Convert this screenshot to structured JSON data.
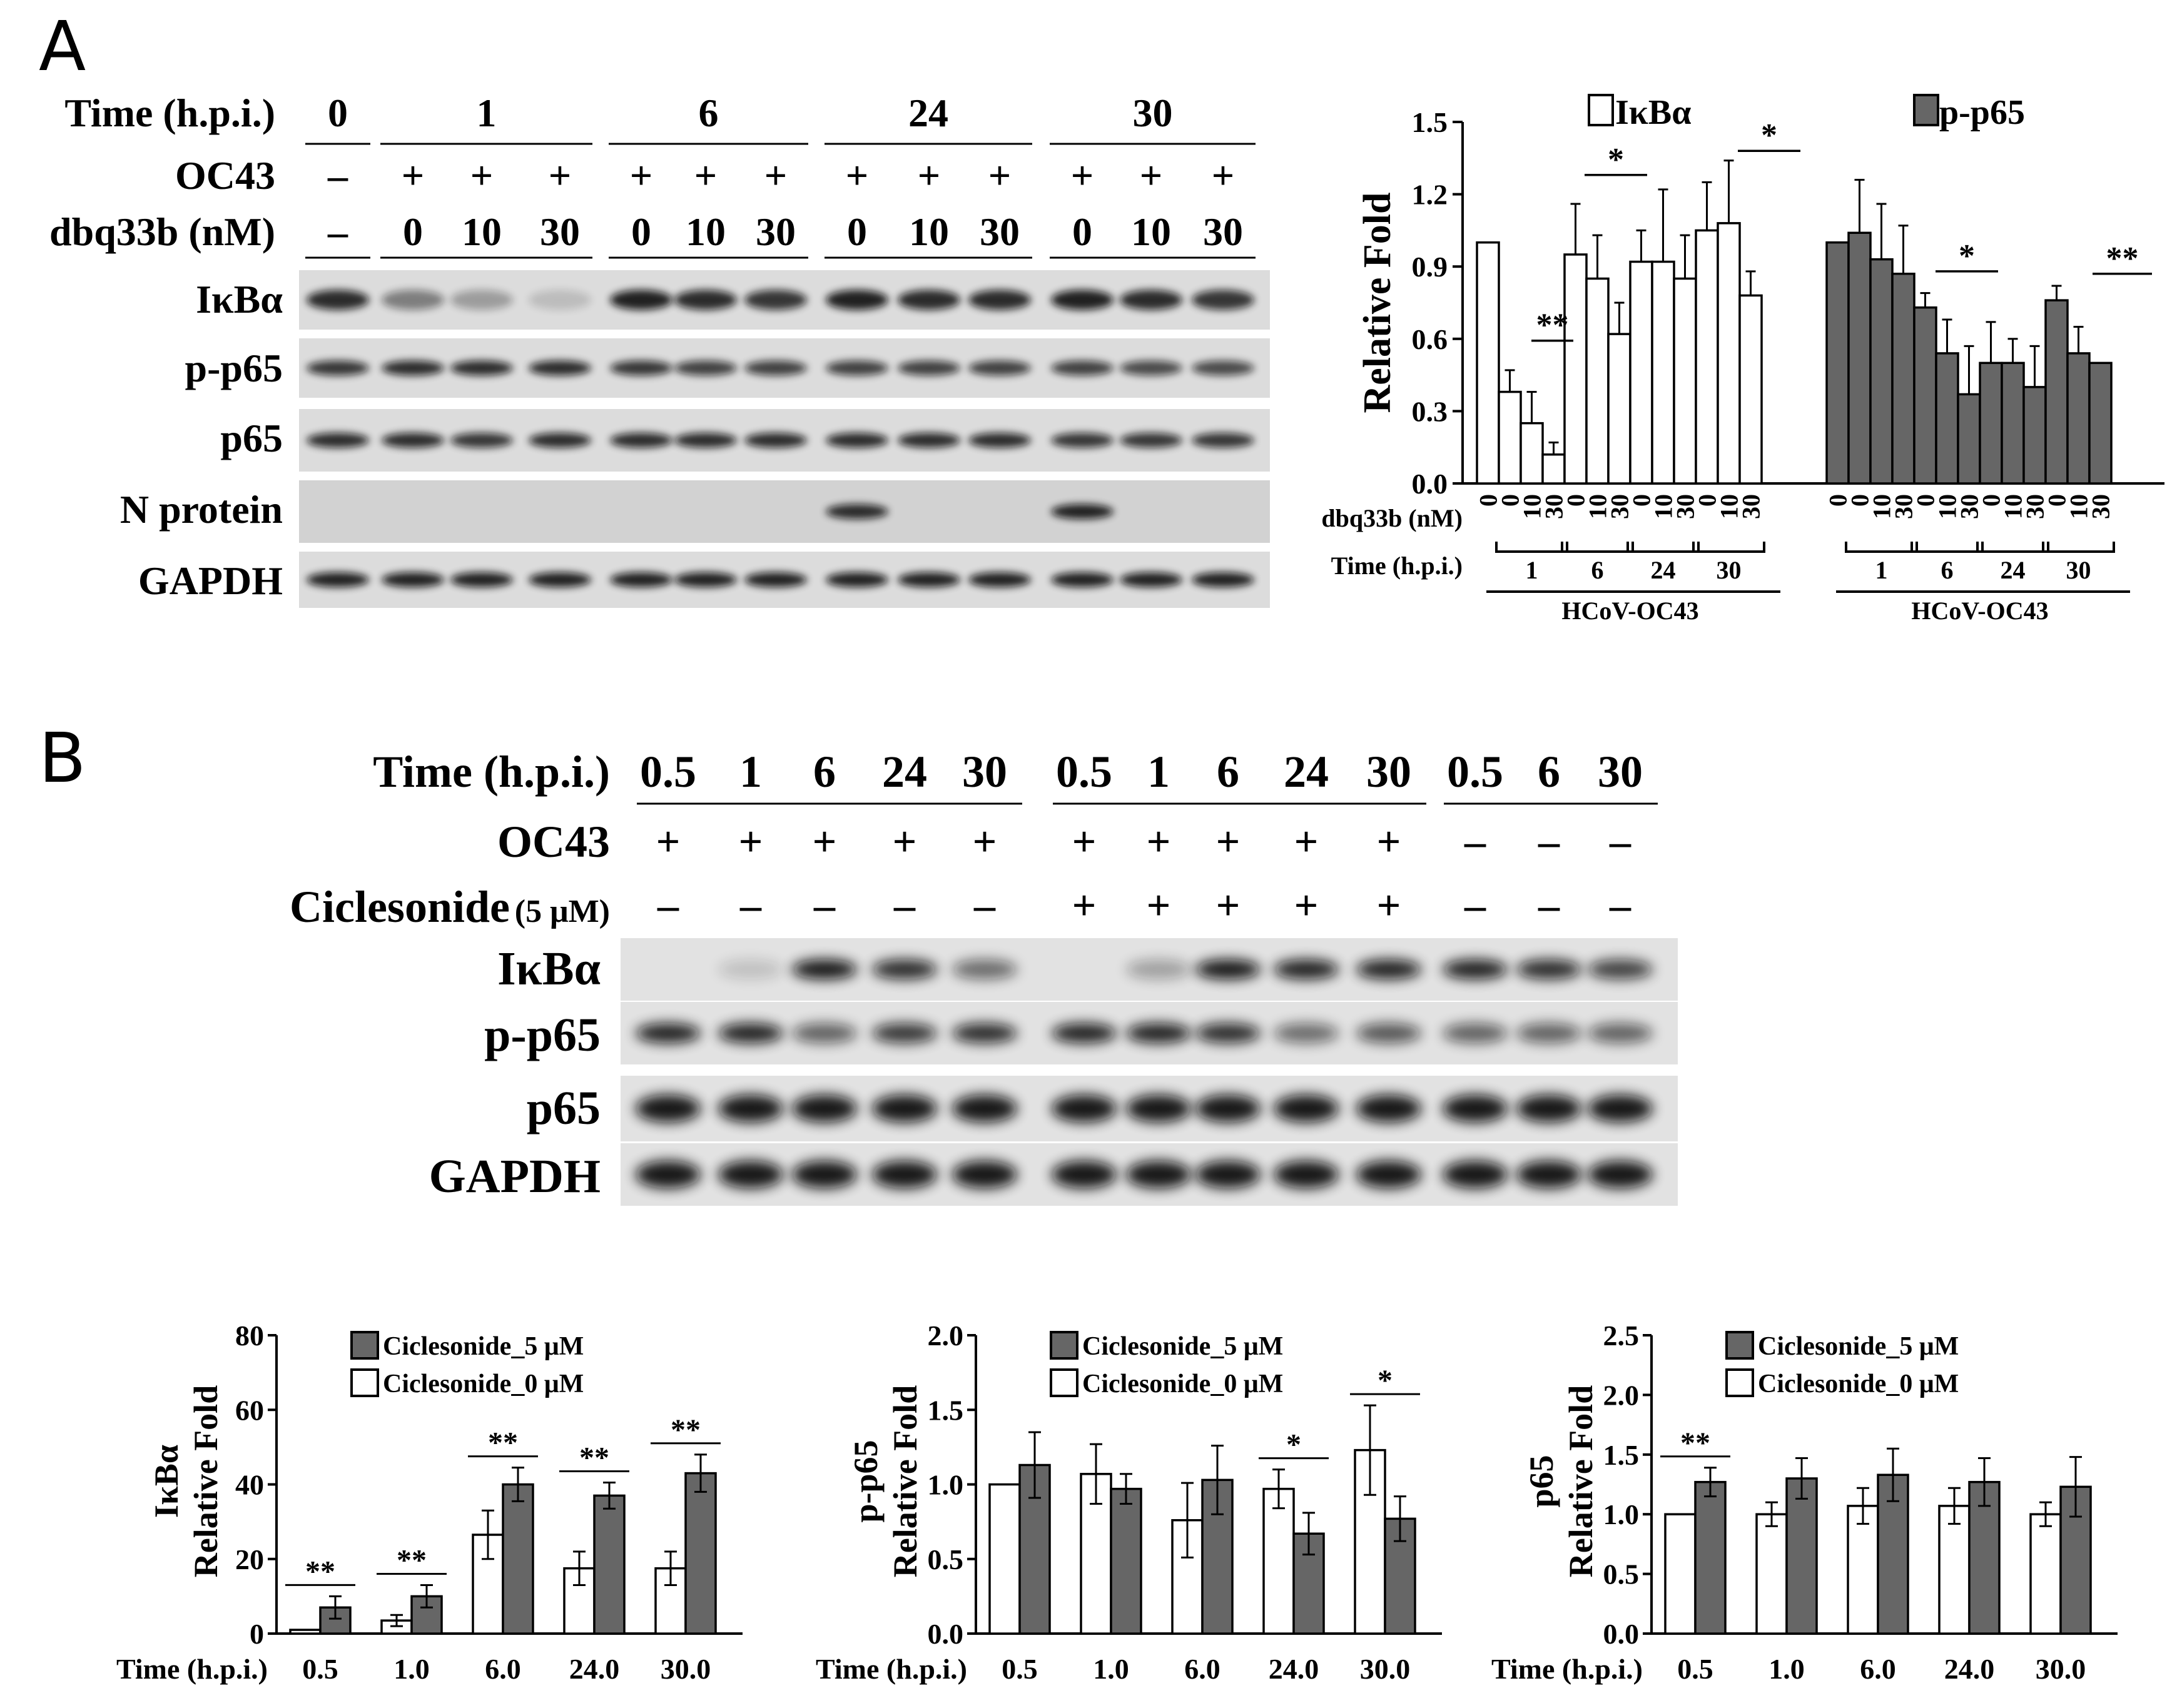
{
  "panel_A": {
    "letter": "A",
    "blot": {
      "rows": [
        {
          "label": "Time (h.p.i.)",
          "values": [
            "0",
            "1",
            "6",
            "24",
            "30"
          ]
        },
        {
          "label": "OC43",
          "values": [
            "–",
            "+",
            "+",
            "+",
            "+",
            "+",
            "+",
            "+",
            "+",
            "+",
            "+",
            "+",
            "+"
          ]
        },
        {
          "label": "dbq33b (nM)",
          "values": [
            "–",
            "0",
            "10",
            "30",
            "0",
            "10",
            "30",
            "0",
            "10",
            "30",
            "0",
            "10",
            "30"
          ]
        }
      ],
      "bands": [
        "IκBα",
        "p-p65",
        "p65",
        "N protein",
        "GAPDH"
      ]
    }
  },
  "panel_B": {
    "letter": "B",
    "blot": {
      "time_label": "Time (h.p.i.)",
      "times": [
        "0.5",
        "1",
        "6",
        "24",
        "30",
        "0.5",
        "1",
        "6",
        "24",
        "30",
        "0.5",
        "6",
        "30"
      ],
      "oc43_label": "OC43",
      "oc43": [
        "+",
        "+",
        "+",
        "+",
        "+",
        "+",
        "+",
        "+",
        "+",
        "+",
        "–",
        "–",
        "–"
      ],
      "cic_label": "Ciclesonide",
      "cic_conc": "(5 μM)",
      "cic": [
        "–",
        "–",
        "–",
        "–",
        "–",
        "+",
        "+",
        "+",
        "+",
        "+",
        "–",
        "–",
        "–"
      ],
      "bands": [
        "IκBα",
        "p-p65",
        "p65",
        "GAPDH"
      ]
    }
  },
  "chart_data": [
    {
      "type": "bar",
      "id": "A-quant",
      "ylabel": "Relative Fold",
      "ylim": [
        0,
        1.5
      ],
      "yticks": [
        "0.0",
        "0.3",
        "0.6",
        "0.9",
        "1.2",
        "1.5"
      ],
      "xlabel_row1": "dbq33b (nM)",
      "xlabel_row2": "Time (h.p.i.)",
      "group_label": "HCoV-OC43",
      "dose_labels": [
        "0",
        "0",
        "10",
        "30",
        "0",
        "10",
        "30",
        "0",
        "10",
        "30",
        "0",
        "10",
        "30"
      ],
      "time_labels": [
        "1",
        "6",
        "24",
        "30"
      ],
      "significance": [
        "**",
        "*",
        "*",
        "*",
        "**"
      ],
      "series": [
        {
          "name": "IκBα",
          "color": "#ffffff",
          "values": [
            1.0,
            0.38,
            0.25,
            0.12,
            0.95,
            0.85,
            0.62,
            0.92,
            0.92,
            0.85,
            1.05,
            1.08,
            0.78
          ],
          "errors": [
            0,
            0.09,
            0.13,
            0.05,
            0.21,
            0.18,
            0.13,
            0.13,
            0.3,
            0.18,
            0.2,
            0.26,
            0.1
          ]
        },
        {
          "name": "p-p65",
          "color": "#666666",
          "values": [
            1.0,
            1.04,
            0.93,
            0.87,
            0.73,
            0.54,
            0.37,
            0.5,
            0.5,
            0.4,
            0.76,
            0.54,
            0.5
          ],
          "errors": [
            0,
            0.22,
            0.23,
            0.2,
            0.06,
            0.14,
            0.2,
            0.17,
            0.1,
            0.17,
            0.06,
            0.11,
            0
          ]
        }
      ]
    },
    {
      "type": "bar",
      "id": "B-ikba",
      "ylabel": "Relative Fold",
      "ylabel_top": "IκBα",
      "xlabel": "Time (h.p.i.)",
      "categories": [
        "0.5",
        "1.0",
        "6.0",
        "24.0",
        "30.0"
      ],
      "ylim": [
        0,
        80
      ],
      "yticks": [
        "0",
        "20",
        "40",
        "60",
        "80"
      ],
      "significance": [
        "**",
        "**",
        "**",
        "**",
        "**"
      ],
      "series": [
        {
          "name": "Ciclesonide_0 μM",
          "color": "#ffffff",
          "values": [
            1,
            3.5,
            26.5,
            17.5,
            17.5
          ],
          "errors": [
            0,
            1.5,
            6.5,
            4.5,
            4.5
          ]
        },
        {
          "name": "Ciclesonide_5 μM",
          "color": "#666666",
          "values": [
            7,
            10,
            40,
            37,
            43
          ],
          "errors": [
            3,
            3,
            4.5,
            3.5,
            5
          ]
        }
      ]
    },
    {
      "type": "bar",
      "id": "B-pp65",
      "ylabel": "Relative Fold",
      "ylabel_top": "p-p65",
      "xlabel": "Time (h.p.i.)",
      "categories": [
        "0.5",
        "1.0",
        "6.0",
        "24.0",
        "30.0"
      ],
      "ylim": [
        0,
        2.0
      ],
      "yticks": [
        "0.0",
        "0.5",
        "1.0",
        "1.5",
        "2.0"
      ],
      "significance": [
        "",
        "",
        "",
        "*",
        "*"
      ],
      "series": [
        {
          "name": "Ciclesonide_0 μM",
          "color": "#ffffff",
          "values": [
            1.0,
            1.07,
            0.76,
            0.97,
            1.23
          ],
          "errors": [
            0,
            0.2,
            0.25,
            0.13,
            0.3
          ]
        },
        {
          "name": "Ciclesonide_5 μM",
          "color": "#666666",
          "values": [
            1.13,
            0.97,
            1.03,
            0.67,
            0.77
          ],
          "errors": [
            0.22,
            0.1,
            0.23,
            0.14,
            0.15
          ]
        }
      ]
    },
    {
      "type": "bar",
      "id": "B-p65",
      "ylabel": "Relative Fold",
      "ylabel_top": "p65",
      "xlabel": "Time (h.p.i.)",
      "categories": [
        "0.5",
        "1.0",
        "6.0",
        "24.0",
        "30.0"
      ],
      "ylim": [
        0,
        2.5
      ],
      "yticks": [
        "0.0",
        "0.5",
        "1.0",
        "1.5",
        "2.0",
        "2.5"
      ],
      "significance": [
        "**",
        "",
        "",
        "",
        ""
      ],
      "series": [
        {
          "name": "Ciclesonide_0 μM",
          "color": "#ffffff",
          "values": [
            1.0,
            1.0,
            1.07,
            1.07,
            1.0
          ],
          "errors": [
            0,
            0.1,
            0.15,
            0.15,
            0.1
          ]
        },
        {
          "name": "Ciclesonide_5 μM",
          "color": "#666666",
          "values": [
            1.27,
            1.3,
            1.33,
            1.27,
            1.23
          ],
          "errors": [
            0.12,
            0.17,
            0.22,
            0.2,
            0.25
          ]
        }
      ]
    }
  ]
}
